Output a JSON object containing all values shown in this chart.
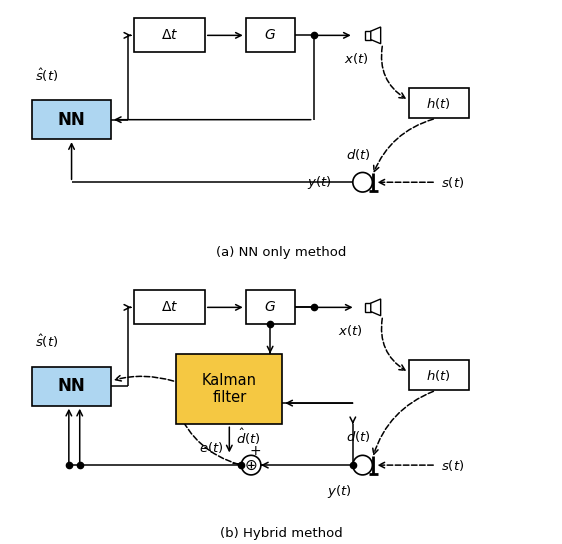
{
  "fig_width": 5.62,
  "fig_height": 5.44,
  "dpi": 100,
  "bg_color": "#ffffff",
  "nn_fill": "#aed6f1",
  "kalman_fill": "#f5c842",
  "caption_a": "(a) NN only method",
  "caption_b": "(b) Hybrid method"
}
